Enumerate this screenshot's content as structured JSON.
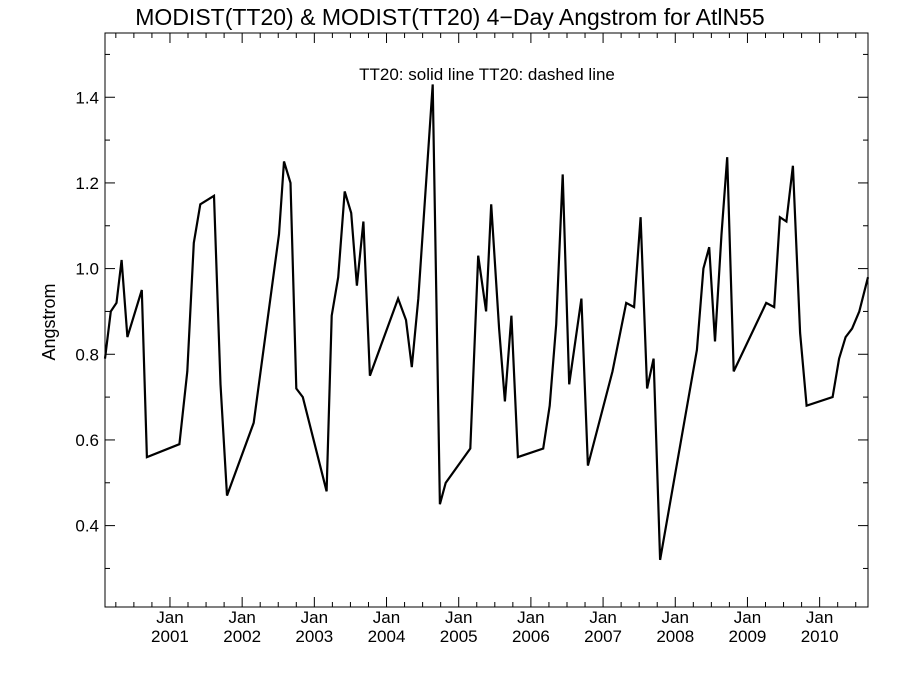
{
  "chart_data": {
    "type": "line",
    "title": "MODIST(TT20) & MODIST(TT20) 4−Day Angstrom for AtlN55",
    "annotation": "TT20: solid line   TT20: dashed line",
    "xlabel": "",
    "ylabel": "Angstrom",
    "xlim": [
      2000.1,
      2010.67
    ],
    "ylim": [
      0.21,
      1.55
    ],
    "grid": false,
    "x_tick_labels": [
      {
        "top": "Jan",
        "bottom": "2001",
        "x": 2001.0
      },
      {
        "top": "Jan",
        "bottom": "2002",
        "x": 2002.0
      },
      {
        "top": "Jan",
        "bottom": "2003",
        "x": 2003.0
      },
      {
        "top": "Jan",
        "bottom": "2004",
        "x": 2004.0
      },
      {
        "top": "Jan",
        "bottom": "2005",
        "x": 2005.0
      },
      {
        "top": "Jan",
        "bottom": "2006",
        "x": 2006.0
      },
      {
        "top": "Jan",
        "bottom": "2007",
        "x": 2007.0
      },
      {
        "top": "Jan",
        "bottom": "2008",
        "x": 2008.0
      },
      {
        "top": "Jan",
        "bottom": "2009",
        "x": 2009.0
      },
      {
        "top": "Jan",
        "bottom": "2010",
        "x": 2010.0
      }
    ],
    "y_ticks": [
      "0.4",
      "0.6",
      "0.8",
      "1.0",
      "1.2",
      "1.4"
    ],
    "series": [
      {
        "name": "TT20",
        "style": "solid",
        "color": "#000000",
        "points": [
          [
            2000.1,
            0.79
          ],
          [
            2000.18,
            0.9
          ],
          [
            2000.26,
            0.92
          ],
          [
            2000.33,
            1.02
          ],
          [
            2000.41,
            0.84
          ],
          [
            2000.61,
            0.95
          ],
          [
            2000.68,
            0.56
          ],
          [
            2001.13,
            0.59
          ],
          [
            2001.24,
            0.76
          ],
          [
            2001.33,
            1.06
          ],
          [
            2001.42,
            1.15
          ],
          [
            2001.61,
            1.17
          ],
          [
            2001.7,
            0.73
          ],
          [
            2001.79,
            0.47
          ],
          [
            2002.16,
            0.64
          ],
          [
            2002.51,
            1.08
          ],
          [
            2002.58,
            1.25
          ],
          [
            2002.67,
            1.2
          ],
          [
            2002.75,
            0.72
          ],
          [
            2002.84,
            0.7
          ],
          [
            2003.17,
            0.48
          ],
          [
            2003.24,
            0.89
          ],
          [
            2003.33,
            0.98
          ],
          [
            2003.42,
            1.18
          ],
          [
            2003.51,
            1.13
          ],
          [
            2003.59,
            0.96
          ],
          [
            2003.68,
            1.11
          ],
          [
            2003.77,
            0.75
          ],
          [
            2004.16,
            0.93
          ],
          [
            2004.27,
            0.88
          ],
          [
            2004.35,
            0.77
          ],
          [
            2004.44,
            0.93
          ],
          [
            2004.64,
            1.43
          ],
          [
            2004.74,
            0.45
          ],
          [
            2004.82,
            0.5
          ],
          [
            2005.16,
            0.58
          ],
          [
            2005.27,
            1.03
          ],
          [
            2005.38,
            0.9
          ],
          [
            2005.45,
            1.15
          ],
          [
            2005.56,
            0.86
          ],
          [
            2005.64,
            0.69
          ],
          [
            2005.73,
            0.89
          ],
          [
            2005.82,
            0.56
          ],
          [
            2006.17,
            0.58
          ],
          [
            2006.26,
            0.68
          ],
          [
            2006.35,
            0.87
          ],
          [
            2006.44,
            1.22
          ],
          [
            2006.53,
            0.73
          ],
          [
            2006.7,
            0.93
          ],
          [
            2006.79,
            0.54
          ],
          [
            2007.13,
            0.76
          ],
          [
            2007.32,
            0.92
          ],
          [
            2007.43,
            0.91
          ],
          [
            2007.52,
            1.12
          ],
          [
            2007.61,
            0.72
          ],
          [
            2007.7,
            0.79
          ],
          [
            2007.79,
            0.32
          ],
          [
            2008.3,
            0.81
          ],
          [
            2008.39,
            1.0
          ],
          [
            2008.47,
            1.05
          ],
          [
            2008.55,
            0.83
          ],
          [
            2008.64,
            1.08
          ],
          [
            2008.72,
            1.26
          ],
          [
            2008.81,
            0.76
          ],
          [
            2009.26,
            0.92
          ],
          [
            2009.37,
            0.91
          ],
          [
            2009.45,
            1.12
          ],
          [
            2009.54,
            1.11
          ],
          [
            2009.63,
            1.24
          ],
          [
            2009.73,
            0.85
          ],
          [
            2009.82,
            0.68
          ],
          [
            2010.18,
            0.7
          ],
          [
            2010.27,
            0.79
          ],
          [
            2010.36,
            0.84
          ],
          [
            2010.45,
            0.86
          ],
          [
            2010.55,
            0.9
          ],
          [
            2010.67,
            0.98
          ]
        ]
      }
    ]
  }
}
